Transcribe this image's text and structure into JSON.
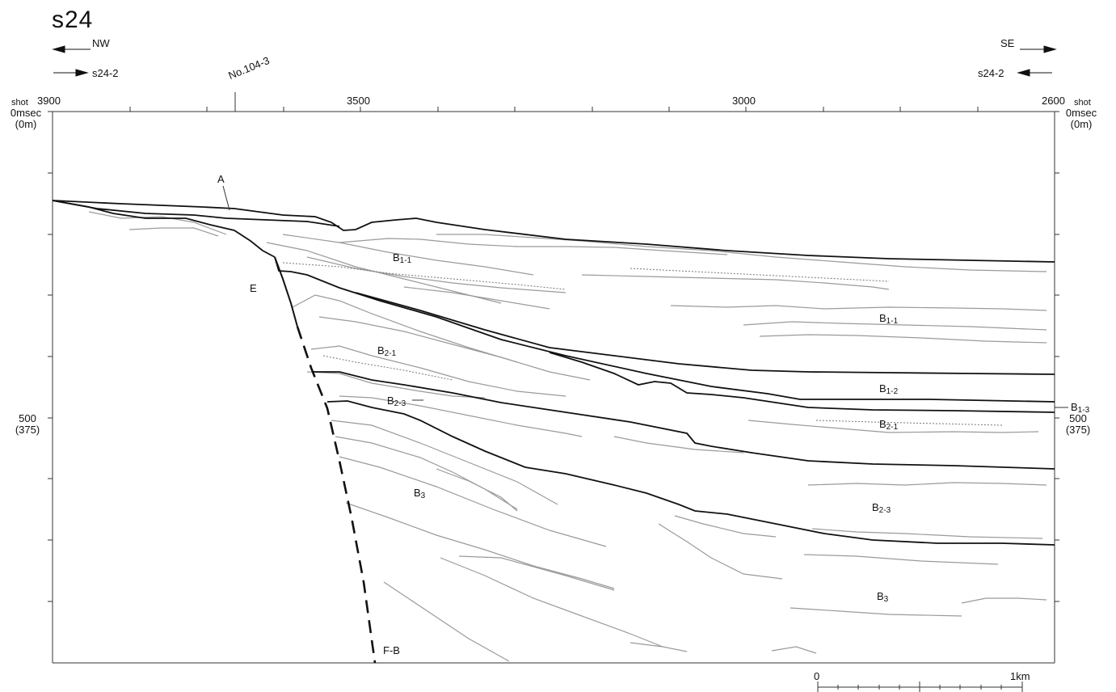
{
  "title": "s24",
  "direction": {
    "left": "NW",
    "right": "SE"
  },
  "crossing": {
    "left": "s24-2",
    "right": "s24-2"
  },
  "marker": "No.104-3",
  "shot_axis": {
    "label": "shot",
    "ticks": [
      "3900",
      "3500",
      "3000",
      "2600"
    ]
  },
  "depth_axis": {
    "top_left": {
      "value": "0msec",
      "sub": "(0m)"
    },
    "top_right": {
      "value": "0msec",
      "sub": "(0m)"
    },
    "mid_left": {
      "value": "500",
      "sub": "(375)"
    },
    "mid_right": {
      "value": "500",
      "sub": "(375)"
    }
  },
  "scale_bar": {
    "start": "0",
    "end": "1km"
  },
  "units": {
    "A": "A",
    "E": "E",
    "fault": "F-B",
    "B1_1_upper": {
      "main": "B",
      "idx": "1-1"
    },
    "B1_1_right": {
      "main": "B",
      "idx": "1-1"
    },
    "B2_1_left": {
      "main": "B",
      "idx": "2-1"
    },
    "B2_3_left": {
      "main": "B",
      "idx": "2-3"
    },
    "B1_2": {
      "main": "B",
      "idx": "1-2"
    },
    "B1_3": {
      "main": "B",
      "idx": "1-3"
    },
    "B2_1_right": {
      "main": "B",
      "idx": "2-1"
    },
    "B3_left": {
      "main": "B",
      "idx": "3"
    },
    "B2_3_right": {
      "main": "B",
      "idx": "2-3"
    },
    "B3_right": {
      "main": "B",
      "idx": "3"
    }
  }
}
